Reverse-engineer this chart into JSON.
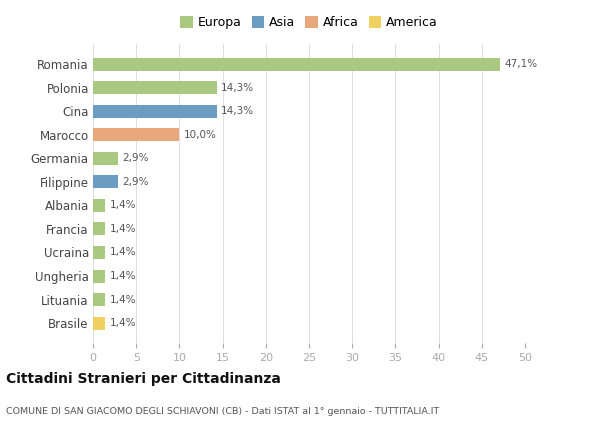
{
  "categories": [
    "Romania",
    "Polonia",
    "Cina",
    "Marocco",
    "Germania",
    "Filippine",
    "Albania",
    "Francia",
    "Ucraina",
    "Ungheria",
    "Lituania",
    "Brasile"
  ],
  "values": [
    47.1,
    14.3,
    14.3,
    10.0,
    2.9,
    2.9,
    1.4,
    1.4,
    1.4,
    1.4,
    1.4,
    1.4
  ],
  "labels": [
    "47,1%",
    "14,3%",
    "14,3%",
    "10,0%",
    "2,9%",
    "2,9%",
    "1,4%",
    "1,4%",
    "1,4%",
    "1,4%",
    "1,4%",
    "1,4%"
  ],
  "colors": [
    "#a8c97f",
    "#a8c97f",
    "#6b9dc2",
    "#e8a87c",
    "#a8c97f",
    "#6b9dc2",
    "#a8c97f",
    "#a8c97f",
    "#a8c97f",
    "#a8c97f",
    "#a8c97f",
    "#f0d060"
  ],
  "legend_labels": [
    "Europa",
    "Asia",
    "Africa",
    "America"
  ],
  "legend_colors": [
    "#a8c97f",
    "#6b9dc2",
    "#e8a87c",
    "#f0d060"
  ],
  "title": "Cittadini Stranieri per Cittadinanza",
  "subtitle": "COMUNE DI SAN GIACOMO DEGLI SCHIAVONI (CB) - Dati ISTAT al 1° gennaio - TUTTITALIA.IT",
  "xlim": [
    0,
    50
  ],
  "xticks": [
    0,
    5,
    10,
    15,
    20,
    25,
    30,
    35,
    40,
    45,
    50
  ],
  "background_color": "#ffffff",
  "grid_color": "#e0e0e0"
}
